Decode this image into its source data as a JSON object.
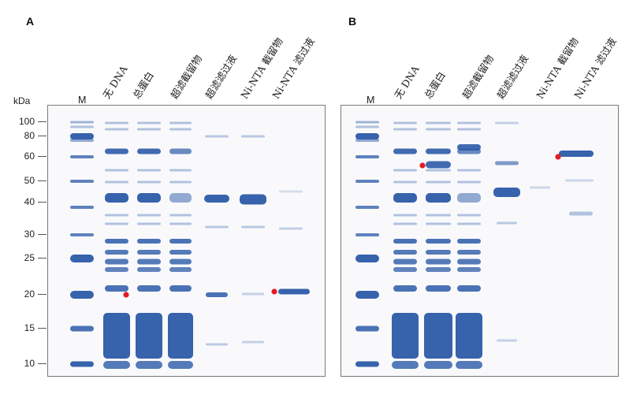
{
  "figure": {
    "panel_a_label": "A",
    "panel_b_label": "B",
    "axis_unit": "kDa",
    "marker_weights": [
      "100",
      "80",
      "60",
      "50",
      "40",
      "30",
      "25",
      "20",
      "15",
      "10"
    ],
    "lanes_a": [
      "M",
      "无 DNA",
      "总蛋白",
      "超滤截留物",
      "超滤滤过液",
      "Ni-NTA 截留物",
      "Ni-NTA 滤过液"
    ],
    "lanes_b": [
      "M",
      "无 DNA",
      "总蛋白",
      "超滤截留物",
      "超滤滤过液",
      "Ni-NTA 截留物",
      "Ni-NTA 滤过液"
    ],
    "colors": {
      "band": "#2c5aa8",
      "band_light": "#9fb4d8",
      "target_marker": "#e31c25",
      "gel_background": "#f9f9fb"
    }
  }
}
